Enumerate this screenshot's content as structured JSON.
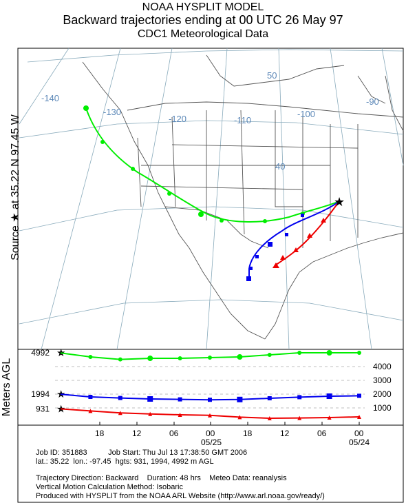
{
  "titles": {
    "line1": "NOAA HYSPLIT MODEL",
    "line2": "Backward trajectories ending at 00 UTC 26 May 97",
    "line3": "CDC1 Meteorological Data"
  },
  "source_label": "Source ★ at 35.22 N 97.45 W",
  "map": {
    "lon_labels": [
      "-140",
      "-130",
      "-120",
      "-110",
      "-100",
      "-90"
    ],
    "lat_labels": [
      "50",
      "40"
    ],
    "source_point": {
      "lat": 35.22,
      "lon": -97.45
    }
  },
  "chart_data": {
    "type": "line",
    "ylabel": "Meters AGL",
    "start_heights": [
      "4992",
      "1994",
      "931"
    ],
    "yticks": [
      "4000",
      "3000",
      "2000",
      "1000"
    ],
    "xticks": [
      "18",
      "12",
      "06",
      "00",
      "18",
      "12",
      "06",
      "00"
    ],
    "date_labels": [
      "05/25",
      "05/24"
    ],
    "series": [
      {
        "color": "#00ee00",
        "marker": "circle",
        "heights": [
          4992,
          4700,
          4520,
          4600,
          4600,
          4650,
          4700,
          4850,
          5000,
          5000,
          5000
        ]
      },
      {
        "color": "#0000ee",
        "marker": "square",
        "heights": [
          1994,
          1800,
          1720,
          1650,
          1620,
          1590,
          1610,
          1700,
          1780,
          1850,
          1880
        ]
      },
      {
        "color": "#ee0000",
        "marker": "triangle",
        "heights": [
          931,
          780,
          640,
          560,
          500,
          460,
          330,
          250,
          270,
          300,
          350
        ]
      }
    ],
    "colors": {
      "green": "#00ee00",
      "blue": "#0000ee",
      "red": "#ee0000"
    }
  },
  "footer": {
    "line1": "Job ID: 351883          Job Start: Thu Jul 13 17:38:50 GMT 2006",
    "line2": "lat.: 35.22  lon.: -97.45  hgts: 931, 1994, 4992 m AGL",
    "line3": "Trajectory Direction: Backward    Duration: 48 hrs    Meteo Data: reanalysis",
    "line4": "Vertical Motion Calculation Method: Isobaric",
    "line5": "Produced with HYSPLIT from the NOAA ARL Website (http://www.arl.noaa.gov/ready/)"
  }
}
